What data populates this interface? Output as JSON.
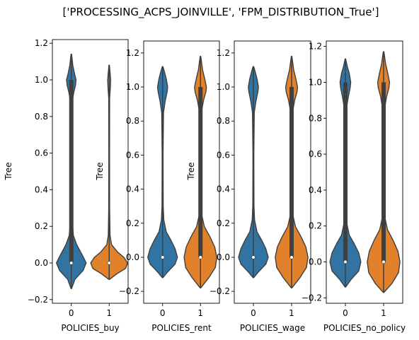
{
  "figure_title": "['PROCESSING_ACPS_JOINVILLE', 'FPM_DISTRIBUTION_True']",
  "colors": {
    "blue": "#3274a1",
    "orange": "#e1812c",
    "box": "#3f3f3f",
    "axis": "#000000"
  },
  "chart_data": [
    {
      "type": "violin",
      "xlabel": "POLICIES_buy",
      "ylabel": "Tree",
      "categories": [
        "0",
        "1"
      ],
      "ylim": [
        -0.22,
        1.22
      ],
      "yticks": [
        -0.2,
        0.0,
        0.2,
        0.4,
        0.6,
        0.8,
        1.0,
        1.2
      ],
      "ytick_labels": [
        "−0.2",
        "0.0",
        "0.2",
        "0.4",
        "0.6",
        "0.8",
        "1.0",
        "1.2"
      ],
      "violins": [
        {
          "category": "0",
          "color": "blue",
          "min": -0.14,
          "max": 1.14,
          "median": 0.0,
          "q1": 0.0,
          "q3": 1.0,
          "profile": [
            [
              -0.14,
              0.01
            ],
            [
              -0.09,
              0.12
            ],
            [
              -0.04,
              0.4
            ],
            [
              0.0,
              0.5
            ],
            [
              0.04,
              0.38
            ],
            [
              0.1,
              0.18
            ],
            [
              0.15,
              0.07
            ],
            [
              0.22,
              0.035
            ],
            [
              0.3,
              0.03
            ],
            [
              0.5,
              0.02
            ],
            [
              0.7,
              0.025
            ],
            [
              0.88,
              0.03
            ],
            [
              0.93,
              0.08
            ],
            [
              0.97,
              0.14
            ],
            [
              1.0,
              0.16
            ],
            [
              1.04,
              0.1
            ],
            [
              1.08,
              0.05
            ],
            [
              1.14,
              0.01
            ]
          ]
        },
        {
          "category": "1",
          "color": "orange",
          "min": -0.09,
          "max": 1.08,
          "median": 0.0,
          "q1": 0.0,
          "q3": 0.0,
          "profile": [
            [
              -0.09,
              0.01
            ],
            [
              -0.06,
              0.25
            ],
            [
              -0.03,
              0.55
            ],
            [
              0.0,
              0.62
            ],
            [
              0.03,
              0.5
            ],
            [
              0.06,
              0.28
            ],
            [
              0.1,
              0.08
            ],
            [
              0.15,
              0.03
            ],
            [
              0.3,
              0.015
            ],
            [
              0.6,
              0.012
            ],
            [
              0.9,
              0.015
            ],
            [
              0.96,
              0.04
            ],
            [
              1.0,
              0.05
            ],
            [
              1.04,
              0.03
            ],
            [
              1.08,
              0.008
            ]
          ]
        }
      ]
    },
    {
      "type": "violin",
      "xlabel": "POLICIES_rent",
      "ylabel": "Tree",
      "categories": [
        "0",
        "1"
      ],
      "ylim": [
        -0.27,
        1.27
      ],
      "yticks": [
        -0.2,
        0.0,
        0.2,
        0.4,
        0.6,
        0.8,
        1.0,
        1.2
      ],
      "ytick_labels": [
        "−0.2",
        "0.0",
        "0.2",
        "0.4",
        "0.6",
        "0.8",
        "1.0",
        "1.2"
      ],
      "violins": [
        {
          "category": "0",
          "color": "blue",
          "min": -0.12,
          "max": 1.12,
          "median": 0.0,
          "q1": 0.0,
          "q3": 0.0,
          "profile": [
            [
              -0.12,
              0.01
            ],
            [
              -0.09,
              0.15
            ],
            [
              -0.04,
              0.42
            ],
            [
              0.0,
              0.5
            ],
            [
              0.05,
              0.42
            ],
            [
              0.1,
              0.28
            ],
            [
              0.15,
              0.12
            ],
            [
              0.22,
              0.04
            ],
            [
              0.3,
              0.02
            ],
            [
              0.6,
              0.015
            ],
            [
              0.85,
              0.03
            ],
            [
              0.92,
              0.09
            ],
            [
              0.97,
              0.15
            ],
            [
              1.0,
              0.17
            ],
            [
              1.05,
              0.12
            ],
            [
              1.09,
              0.06
            ],
            [
              1.12,
              0.01
            ]
          ]
        },
        {
          "category": "1",
          "color": "orange",
          "min": -0.18,
          "max": 1.18,
          "median": 0.0,
          "q1": 0.0,
          "q3": 1.0,
          "profile": [
            [
              -0.18,
              0.01
            ],
            [
              -0.12,
              0.28
            ],
            [
              -0.06,
              0.5
            ],
            [
              0.0,
              0.55
            ],
            [
              0.06,
              0.48
            ],
            [
              0.12,
              0.32
            ],
            [
              0.18,
              0.13
            ],
            [
              0.25,
              0.04
            ],
            [
              0.35,
              0.02
            ],
            [
              0.6,
              0.015
            ],
            [
              0.85,
              0.03
            ],
            [
              0.92,
              0.1
            ],
            [
              0.97,
              0.18
            ],
            [
              1.0,
              0.2
            ],
            [
              1.05,
              0.14
            ],
            [
              1.1,
              0.07
            ],
            [
              1.18,
              0.01
            ]
          ]
        }
      ]
    },
    {
      "type": "violin",
      "xlabel": "POLICIES_wage",
      "ylabel": "Tree",
      "categories": [
        "0",
        "1"
      ],
      "ylim": [
        -0.27,
        1.27
      ],
      "yticks": [
        -0.2,
        0.0,
        0.2,
        0.4,
        0.6,
        0.8,
        1.0,
        1.2
      ],
      "ytick_labels": [
        "−0.2",
        "0.0",
        "0.2",
        "0.4",
        "0.6",
        "0.8",
        "1.0",
        "1.2"
      ],
      "violins": [
        {
          "category": "0",
          "color": "blue",
          "min": -0.12,
          "max": 1.12,
          "median": 0.0,
          "q1": 0.0,
          "q3": 0.0,
          "profile": [
            [
              -0.12,
              0.01
            ],
            [
              -0.09,
              0.15
            ],
            [
              -0.04,
              0.42
            ],
            [
              0.0,
              0.5
            ],
            [
              0.05,
              0.42
            ],
            [
              0.1,
              0.28
            ],
            [
              0.15,
              0.12
            ],
            [
              0.22,
              0.04
            ],
            [
              0.3,
              0.02
            ],
            [
              0.6,
              0.015
            ],
            [
              0.85,
              0.03
            ],
            [
              0.92,
              0.09
            ],
            [
              0.97,
              0.15
            ],
            [
              1.0,
              0.17
            ],
            [
              1.05,
              0.12
            ],
            [
              1.09,
              0.06
            ],
            [
              1.12,
              0.01
            ]
          ]
        },
        {
          "category": "1",
          "color": "orange",
          "min": -0.18,
          "max": 1.18,
          "median": 0.0,
          "q1": 0.0,
          "q3": 1.0,
          "profile": [
            [
              -0.18,
              0.01
            ],
            [
              -0.12,
              0.28
            ],
            [
              -0.06,
              0.5
            ],
            [
              0.0,
              0.55
            ],
            [
              0.06,
              0.48
            ],
            [
              0.12,
              0.32
            ],
            [
              0.18,
              0.13
            ],
            [
              0.25,
              0.04
            ],
            [
              0.35,
              0.02
            ],
            [
              0.6,
              0.015
            ],
            [
              0.85,
              0.03
            ],
            [
              0.92,
              0.1
            ],
            [
              0.97,
              0.18
            ],
            [
              1.0,
              0.2
            ],
            [
              1.05,
              0.14
            ],
            [
              1.1,
              0.07
            ],
            [
              1.18,
              0.01
            ]
          ]
        }
      ]
    },
    {
      "type": "violin",
      "xlabel": "POLICIES_no_policy",
      "ylabel": "",
      "categories": [
        "0",
        "1"
      ],
      "ylim": [
        -0.23,
        1.23
      ],
      "yticks": [
        -0.2,
        0.0,
        0.2,
        0.4,
        0.6,
        0.8,
        1.0,
        1.2
      ],
      "ytick_labels": [
        "−0.2",
        "0.0",
        "0.2",
        "0.4",
        "0.6",
        "0.8",
        "1.0",
        "1.2"
      ],
      "violins": [
        {
          "category": "0",
          "color": "blue",
          "min": -0.14,
          "max": 1.13,
          "median": 0.0,
          "q1": 0.0,
          "q3": 1.0,
          "profile": [
            [
              -0.14,
              0.01
            ],
            [
              -0.1,
              0.18
            ],
            [
              -0.05,
              0.45
            ],
            [
              0.0,
              0.52
            ],
            [
              0.05,
              0.45
            ],
            [
              0.1,
              0.3
            ],
            [
              0.15,
              0.13
            ],
            [
              0.22,
              0.04
            ],
            [
              0.3,
              0.02
            ],
            [
              0.6,
              0.015
            ],
            [
              0.85,
              0.03
            ],
            [
              0.92,
              0.1
            ],
            [
              0.97,
              0.16
            ],
            [
              1.0,
              0.18
            ],
            [
              1.05,
              0.13
            ],
            [
              1.09,
              0.06
            ],
            [
              1.13,
              0.01
            ]
          ]
        },
        {
          "category": "1",
          "color": "orange",
          "min": -0.17,
          "max": 1.17,
          "median": 0.0,
          "q1": 0.0,
          "q3": 1.0,
          "profile": [
            [
              -0.17,
              0.01
            ],
            [
              -0.12,
              0.28
            ],
            [
              -0.06,
              0.5
            ],
            [
              0.0,
              0.55
            ],
            [
              0.06,
              0.48
            ],
            [
              0.12,
              0.32
            ],
            [
              0.18,
              0.13
            ],
            [
              0.25,
              0.04
            ],
            [
              0.35,
              0.02
            ],
            [
              0.6,
              0.015
            ],
            [
              0.85,
              0.03
            ],
            [
              0.92,
              0.1
            ],
            [
              0.97,
              0.18
            ],
            [
              1.0,
              0.2
            ],
            [
              1.05,
              0.14
            ],
            [
              1.1,
              0.07
            ],
            [
              1.17,
              0.01
            ]
          ]
        }
      ]
    }
  ]
}
